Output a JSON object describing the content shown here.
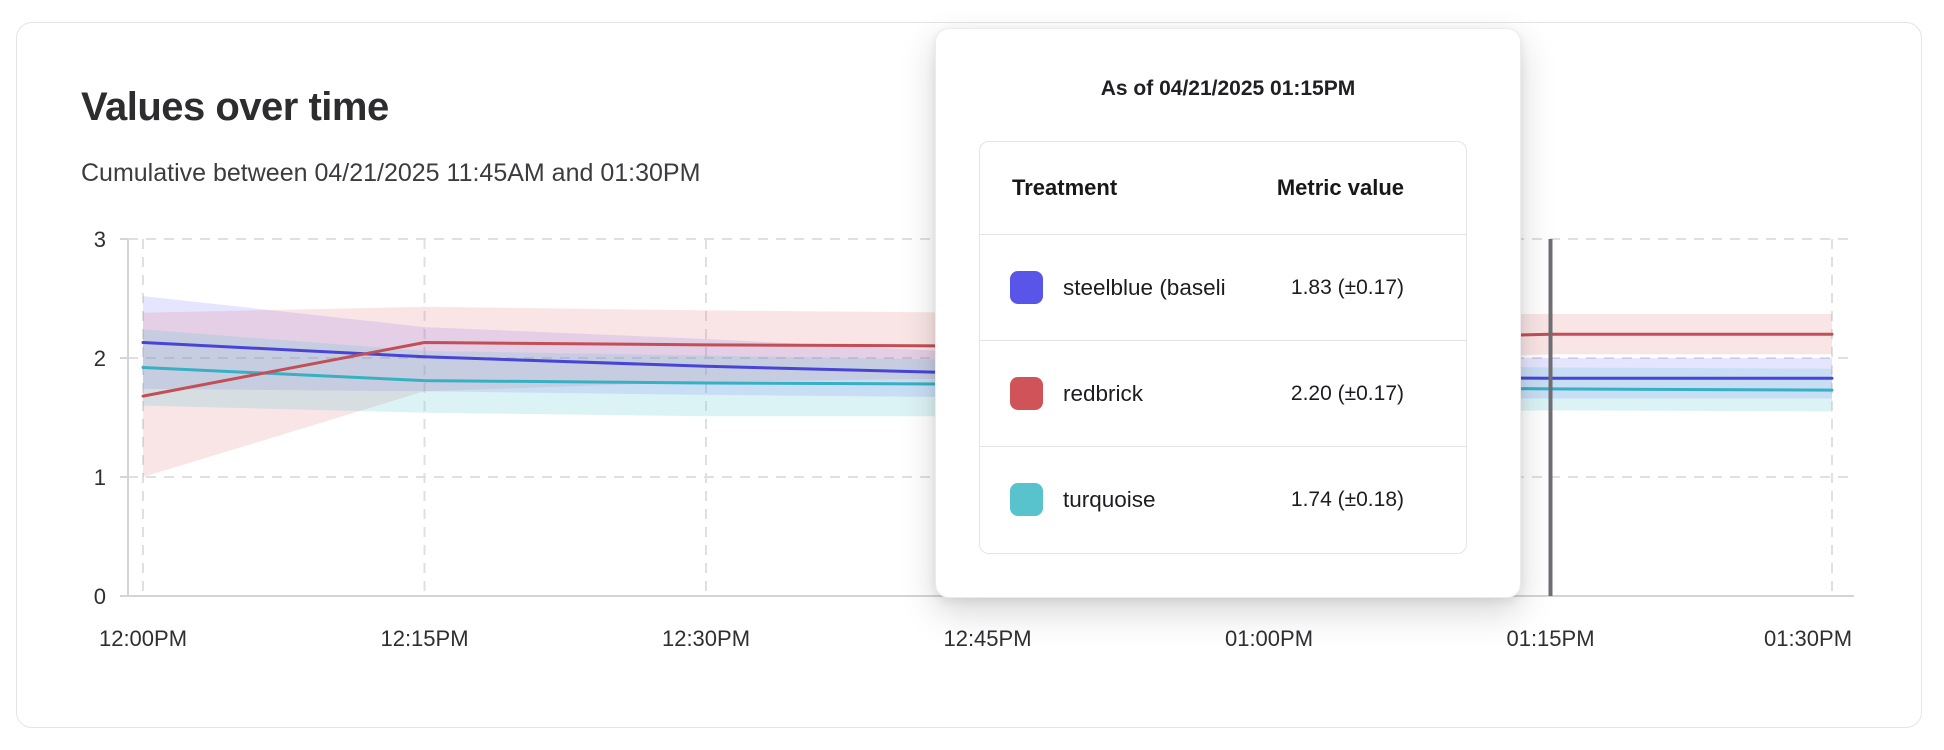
{
  "card": {
    "title": "Values over time",
    "subtitle": "Cumulative between 04/21/2025 11:45AM and 01:30PM"
  },
  "tooltip": {
    "title": "As of 04/21/2025 01:15PM",
    "columns": {
      "treatment": "Treatment",
      "metric": "Metric value"
    },
    "rows": [
      {
        "label": "steelblue  (baseli",
        "value": "1.83 (±0.17)",
        "swatch_color": "#5855e8"
      },
      {
        "label": "redbrick",
        "value": "2.20 (±0.17)",
        "swatch_color": "#d05359"
      },
      {
        "label": "turquoise",
        "value": "1.74 (±0.18)",
        "swatch_color": "#58c3cd"
      }
    ]
  },
  "chart_data": {
    "type": "line",
    "title": "Values over time",
    "x_labels": [
      "12:00PM",
      "12:15PM",
      "12:30PM",
      "12:45PM",
      "01:00PM",
      "01:15PM",
      "01:30PM"
    ],
    "y_ticks": [
      0,
      1,
      2,
      3
    ],
    "ylim": [
      0,
      3
    ],
    "grid": true,
    "legend_position": "none",
    "hover_label": "01:15PM",
    "hover_line_color": "#6e6e73",
    "axis_color": "#d4d4d8",
    "grid_color": "#e0e0e4",
    "series": [
      {
        "name": "steelblue (baseline)",
        "line_color": "#4845d6",
        "band_color": "rgba(99,91,255,0.16)",
        "values": [
          2.13,
          2.01,
          1.93,
          1.87,
          1.84,
          1.83,
          1.83
        ],
        "upper": [
          2.52,
          2.26,
          2.16,
          2.04,
          2.01,
          2.0,
          2.0
        ],
        "lower": [
          1.74,
          1.72,
          1.69,
          1.67,
          1.66,
          1.66,
          1.66
        ]
      },
      {
        "name": "redbrick",
        "line_color": "#c34f56",
        "band_color": "rgba(217,92,99,0.16)",
        "values": [
          1.68,
          2.13,
          2.11,
          2.1,
          2.14,
          2.2,
          2.2
        ],
        "upper": [
          2.38,
          2.43,
          2.4,
          2.38,
          2.37,
          2.37,
          2.37
        ],
        "lower": [
          1.0,
          1.72,
          1.8,
          1.83,
          1.95,
          2.03,
          2.03
        ]
      },
      {
        "name": "turquoise",
        "line_color": "#38b0c3",
        "band_color": "rgba(96,199,210,0.22)",
        "values": [
          1.92,
          1.81,
          1.79,
          1.78,
          1.76,
          1.74,
          1.73
        ],
        "upper": [
          2.24,
          2.06,
          2.02,
          1.98,
          1.95,
          1.92,
          1.91
        ],
        "lower": [
          1.6,
          1.54,
          1.51,
          1.51,
          1.53,
          1.56,
          1.55
        ]
      }
    ]
  }
}
